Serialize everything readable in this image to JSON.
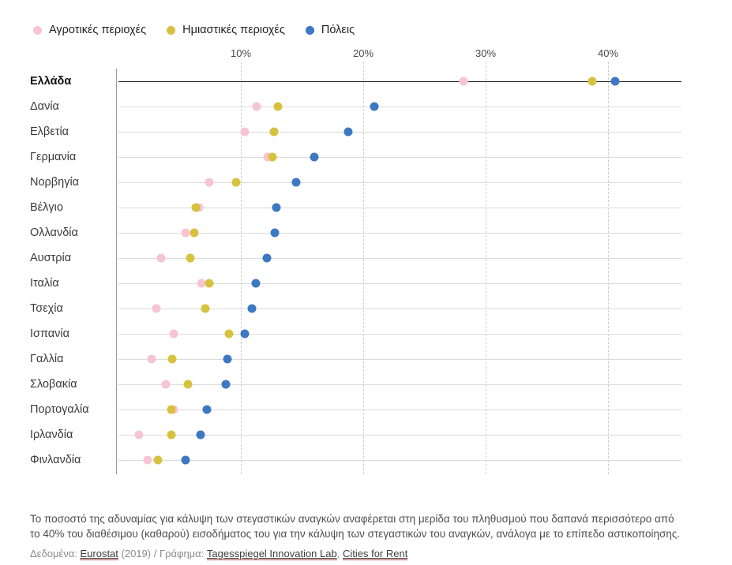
{
  "legend_note": "legend is generated from chart_data.series_meta",
  "chart_data": {
    "type": "scatter",
    "title": "",
    "x_axis": {
      "unit": "%",
      "max": 46,
      "ticks": [
        {
          "value": 10,
          "label": "10%"
        },
        {
          "value": 20,
          "label": "20%"
        },
        {
          "value": 30,
          "label": "30%"
        },
        {
          "value": 40,
          "label": "40%"
        }
      ],
      "grid": "dashed"
    },
    "series_meta": [
      {
        "key": "rural",
        "label": "Αγροτικές περιοχές",
        "color": "#f7c5d2"
      },
      {
        "key": "semi_urban",
        "label": "Ημιαστικές περιοχές",
        "color": "#d6c23e"
      },
      {
        "key": "cities",
        "label": "Πόλεις",
        "color": "#3d78c2"
      }
    ],
    "rows": [
      {
        "country": "Ελλάδα",
        "bold": true,
        "rural": 28.2,
        "semi_urban": 38.7,
        "cities": 40.6
      },
      {
        "country": "Δανία",
        "bold": false,
        "rural": 11.3,
        "semi_urban": 13.0,
        "cities": 20.9
      },
      {
        "country": "Ελβετία",
        "bold": false,
        "rural": 10.3,
        "semi_urban": 12.7,
        "cities": 18.8
      },
      {
        "country": "Γερμανία",
        "bold": false,
        "rural": 12.2,
        "semi_urban": 12.6,
        "cities": 16.0
      },
      {
        "country": "Νορβηγία",
        "bold": false,
        "rural": 7.4,
        "semi_urban": 9.6,
        "cities": 14.5
      },
      {
        "country": "Βέλγιο",
        "bold": false,
        "rural": 6.6,
        "semi_urban": 6.3,
        "cities": 12.9
      },
      {
        "country": "Ολλανδία",
        "bold": false,
        "rural": 5.5,
        "semi_urban": 6.2,
        "cities": 12.8
      },
      {
        "country": "Αυστρία",
        "bold": false,
        "rural": 3.5,
        "semi_urban": 5.9,
        "cities": 12.1
      },
      {
        "country": "Ιταλία",
        "bold": false,
        "rural": 6.8,
        "semi_urban": 7.4,
        "cities": 11.2
      },
      {
        "country": "Τσεχία",
        "bold": false,
        "rural": 3.1,
        "semi_urban": 7.1,
        "cities": 10.9
      },
      {
        "country": "Ισπανία",
        "bold": false,
        "rural": 4.5,
        "semi_urban": 9.0,
        "cities": 10.3
      },
      {
        "country": "Γαλλία",
        "bold": false,
        "rural": 2.7,
        "semi_urban": 4.4,
        "cities": 8.9
      },
      {
        "country": "Σλοβακία",
        "bold": false,
        "rural": 3.9,
        "semi_urban": 5.7,
        "cities": 8.8
      },
      {
        "country": "Πορτογαλία",
        "bold": false,
        "rural": 4.5,
        "semi_urban": 4.3,
        "cities": 7.2
      },
      {
        "country": "Ιρλανδία",
        "bold": false,
        "rural": 1.7,
        "semi_urban": 4.3,
        "cities": 6.7
      },
      {
        "country": "Φινλανδία",
        "bold": false,
        "rural": 2.4,
        "semi_urban": 3.2,
        "cities": 5.5
      }
    ]
  },
  "footnote": "Το ποσοστό της αδυναμίας για κάλυψη των στεγαστικών αναγκών αναφέρεται στη μερίδα του πληθυσμού που δαπανά περισσότερο από το 40% του διαθέσιμου (καθαρού) εισοδήματος του για την κάλυψη των στεγαστικών του αναγκών, ανάλογα με το επίπεδο αστικοποίησης.",
  "source": {
    "data_prefix": "Δεδομένα:",
    "eurostat": "Eurostat",
    "middle": "(2019) / Γράφημα:",
    "tagesspiegel": "Tagesspiegel Innovation Lab",
    "separator": ",",
    "cities_for_rent": "Cities for Rent"
  }
}
